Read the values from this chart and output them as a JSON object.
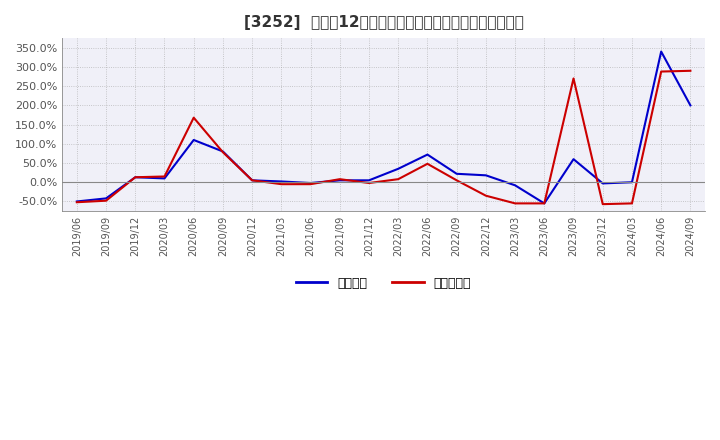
{
  "title": "[3252]  利益の12か月移動合計の対前年同期増減率の推移",
  "ylim": [
    -0.75,
    3.75
  ],
  "yticks": [
    -0.5,
    0.0,
    0.5,
    1.0,
    1.5,
    2.0,
    2.5,
    3.0,
    3.5
  ],
  "background_color": "#ffffff",
  "plot_bg_color": "#f0f0f8",
  "grid_color": "#aaaaaa",
  "legend_labels": [
    "経常利益",
    "当期純利益"
  ],
  "line_colors": [
    "#0000cc",
    "#cc0000"
  ],
  "dates": [
    "2019/06",
    "2019/09",
    "2019/12",
    "2020/03",
    "2020/06",
    "2020/09",
    "2020/12",
    "2021/03",
    "2021/06",
    "2021/09",
    "2021/12",
    "2022/03",
    "2022/06",
    "2022/09",
    "2022/12",
    "2023/03",
    "2023/06",
    "2023/09",
    "2023/12",
    "2024/03",
    "2024/06",
    "2024/09"
  ],
  "operating_profit": [
    -0.5,
    -0.42,
    0.13,
    0.1,
    1.1,
    0.8,
    0.05,
    0.02,
    -0.02,
    0.05,
    0.05,
    0.35,
    0.72,
    0.22,
    0.18,
    -0.08,
    -0.55,
    0.6,
    -0.03,
    0.0,
    3.4,
    2.0
  ],
  "net_profit": [
    -0.52,
    -0.48,
    0.13,
    0.15,
    1.68,
    0.78,
    0.05,
    -0.05,
    -0.05,
    0.08,
    -0.02,
    0.08,
    0.48,
    0.05,
    -0.35,
    -0.55,
    -0.55,
    2.7,
    -0.57,
    -0.55,
    2.88,
    2.9
  ]
}
